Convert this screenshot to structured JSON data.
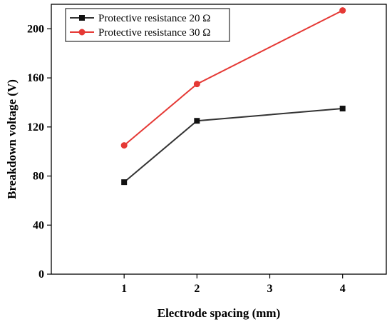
{
  "chart_data": {
    "type": "line",
    "title": "",
    "xlabel": "Electrode spacing (mm)",
    "ylabel": "Breakdown voltage (V)",
    "x_ticks": [
      1,
      2,
      3,
      4
    ],
    "y_ticks": [
      0,
      40,
      80,
      120,
      160,
      200
    ],
    "xlim": [
      0.0,
      4.6
    ],
    "ylim": [
      0,
      220
    ],
    "grid": false,
    "legend_position": "top-left",
    "series": [
      {
        "name": "Protective resistance 20 Ω",
        "x": [
          1,
          2,
          4
        ],
        "y": [
          75,
          125,
          135
        ],
        "color": "#333333",
        "marker": "square"
      },
      {
        "name": "Protective resistance 30 Ω",
        "x": [
          1,
          2,
          4
        ],
        "y": [
          105,
          155,
          215
        ],
        "color": "#e53935",
        "marker": "circle"
      }
    ]
  }
}
